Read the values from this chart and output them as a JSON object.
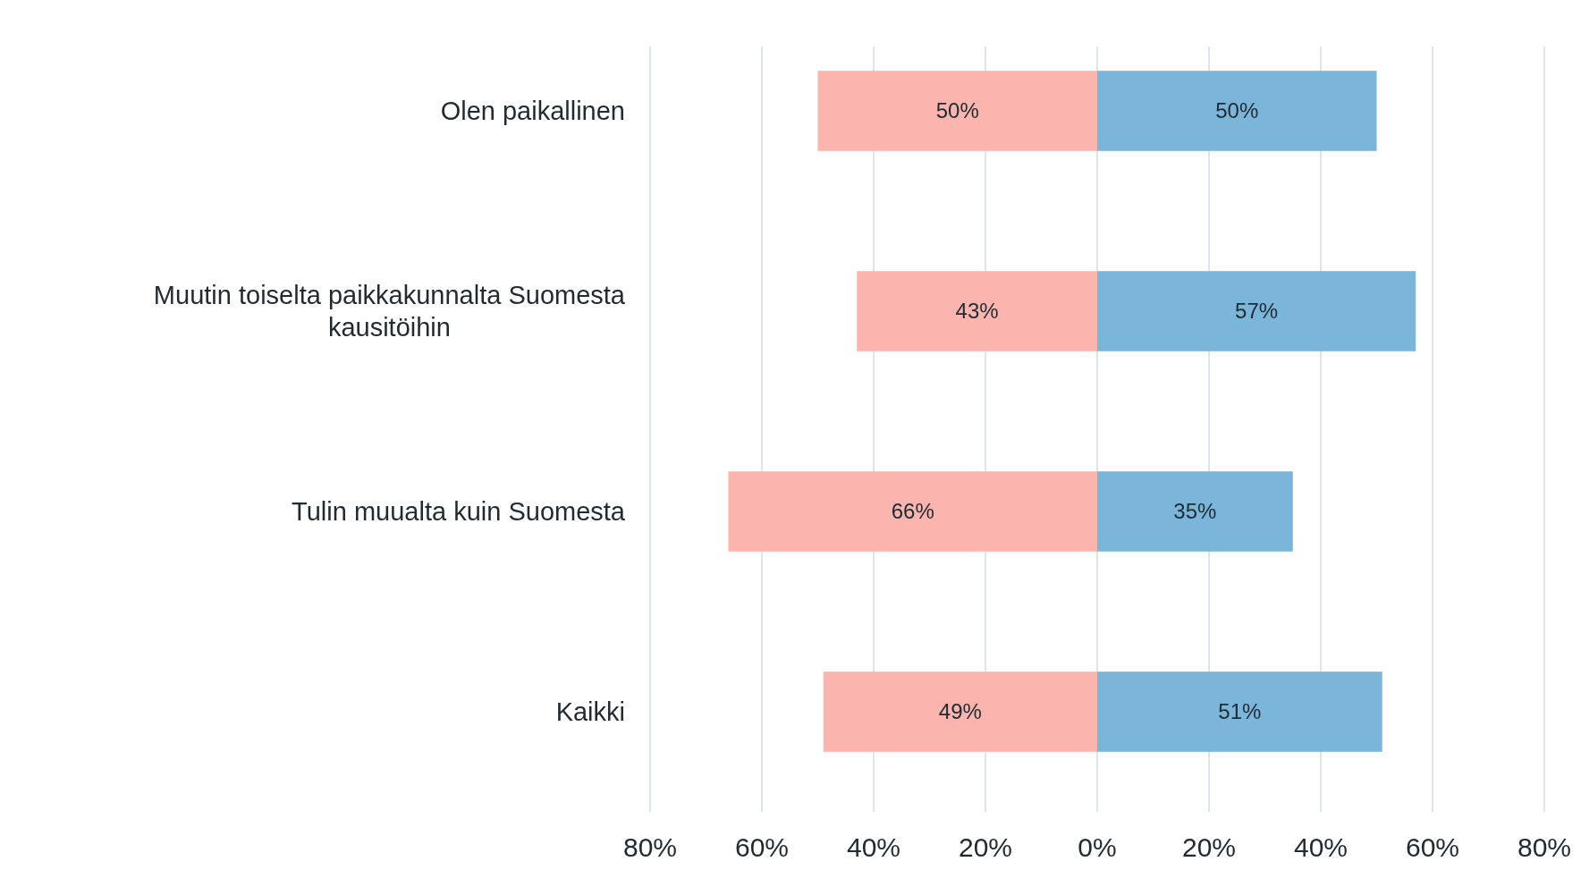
{
  "chart_data": {
    "type": "bar",
    "orientation": "horizontal",
    "categories": [
      "Olen paikallinen",
      "Muutin toiselta paikkakunnalta Suomesta kausitöihin",
      "Tulin muualta kuin Suomesta",
      "Kaikki"
    ],
    "series": [
      {
        "color": "#fbb4ae",
        "values": [
          50,
          43,
          66,
          49
        ],
        "base": [
          -50,
          -43,
          -66,
          -49
        ],
        "value_labels": [
          "50%",
          "43%",
          "66%",
          "49%"
        ]
      },
      {
        "color": "#7bb6da",
        "values": [
          50,
          57,
          35,
          51
        ],
        "value_labels": [
          "50%",
          "57%",
          "35%",
          "51%"
        ]
      }
    ],
    "xlim": [
      -80,
      80
    ],
    "xticks": [
      {
        "value": -80,
        "label": "80%"
      },
      {
        "value": -60,
        "label": "60%"
      },
      {
        "value": -40,
        "label": "40%"
      },
      {
        "value": -20,
        "label": "20%"
      },
      {
        "value": 0,
        "label": "0%"
      },
      {
        "value": 20,
        "label": "20%"
      },
      {
        "value": 40,
        "label": "40%"
      },
      {
        "value": 60,
        "label": "60%"
      },
      {
        "value": 80,
        "label": "80%"
      }
    ],
    "grid": "x"
  }
}
